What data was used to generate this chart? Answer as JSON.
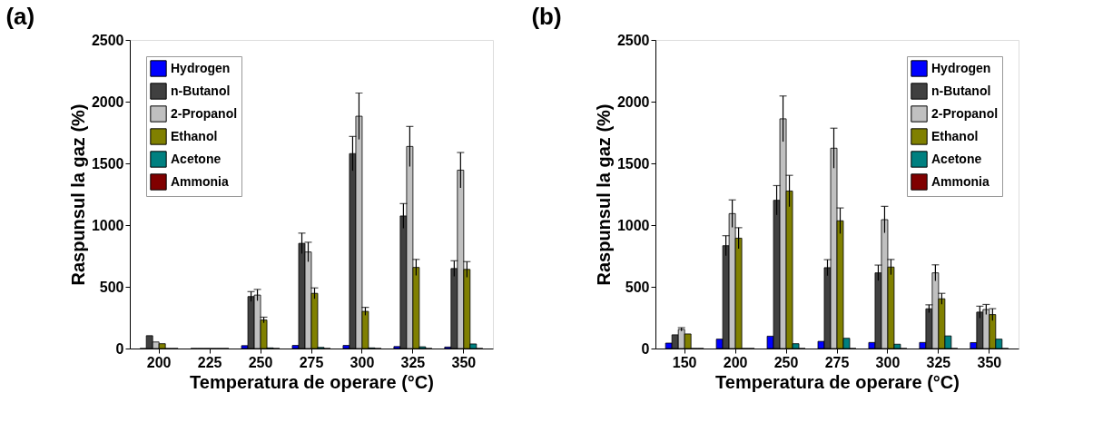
{
  "chart_data": [
    {
      "type": "bar",
      "title": "(a)",
      "xlabel": "Temperatura de operare (°C)",
      "ylabel": "Raspunsul la gaz (%)",
      "categories": [
        "200",
        "225",
        "250",
        "275",
        "300",
        "325",
        "350"
      ],
      "ylim": [
        0,
        2500
      ],
      "yticks": [
        0,
        500,
        1000,
        1500,
        2000,
        2500
      ],
      "legend": "top left",
      "grid": false,
      "series": [
        {
          "name": "Hydrogen",
          "color": "#0000ff",
          "values": [
            0,
            0,
            23,
            25,
            25,
            16,
            12
          ]
        },
        {
          "name": "n-Butanol",
          "color": "#404040",
          "values": [
            104,
            0,
            421,
            852,
            1579,
            1074,
            648
          ],
          "errors": [
            null,
            null,
            40,
            83,
            139,
            100,
            63
          ]
        },
        {
          "name": "2-Propanol",
          "color": "#c0c0c0",
          "values": [
            53,
            0,
            433,
            782,
            1882,
            1637,
            1445
          ],
          "errors": [
            null,
            null,
            46,
            79,
            188,
            162,
            143
          ]
        },
        {
          "name": "Ethanol",
          "color": "#808000",
          "values": [
            39,
            0,
            231,
            447,
            301,
            657,
            641
          ],
          "errors": [
            null,
            null,
            23,
            44,
            32,
            65,
            63
          ]
        },
        {
          "name": "Acetone",
          "color": "#008080",
          "values": [
            0,
            0,
            5,
            9,
            5,
            14,
            37
          ]
        },
        {
          "name": "Ammonia",
          "color": "#800000",
          "values": [
            0,
            0,
            0,
            0,
            0,
            0,
            0
          ]
        }
      ]
    },
    {
      "type": "bar",
      "title": "(b)",
      "xlabel": "Temperatura de operare (°C)",
      "ylabel": "Raspunsul la gaz (%)",
      "categories": [
        "150",
        "200",
        "250",
        "275",
        "300",
        "325",
        "350"
      ],
      "ylim": [
        0,
        2500
      ],
      "yticks": [
        0,
        500,
        1000,
        1500,
        2000,
        2500
      ],
      "legend": "top right",
      "grid": false,
      "series": [
        {
          "name": "Hydrogen",
          "color": "#0000ff",
          "values": [
            44,
            76,
            100,
            58,
            49,
            49,
            48
          ]
        },
        {
          "name": "n-Butanol",
          "color": "#404040",
          "values": [
            111,
            833,
            1201,
            655,
            613,
            322,
            295
          ],
          "errors": [
            null,
            81,
            119,
            65,
            63,
            32,
            48
          ]
        },
        {
          "name": "2-Propanol",
          "color": "#c0c0c0",
          "values": [
            155,
            1093,
            1861,
            1623,
            1044,
            613,
            316
          ],
          "errors": [
            14,
            111,
            185,
            162,
            107,
            65,
            41
          ]
        },
        {
          "name": "Ethanol",
          "color": "#808000",
          "values": [
            118,
            894,
            1276,
            1035,
            660,
            403,
            275
          ],
          "errors": [
            null,
            85,
            127,
            104,
            62,
            44,
            48
          ]
        },
        {
          "name": "Acetone",
          "color": "#008080",
          "values": [
            0,
            0,
            39,
            83,
            35,
            102,
            76
          ]
        },
        {
          "name": "Ammonia",
          "color": "#800000",
          "values": [
            0,
            0,
            0,
            0,
            0,
            0,
            0
          ]
        }
      ]
    }
  ]
}
